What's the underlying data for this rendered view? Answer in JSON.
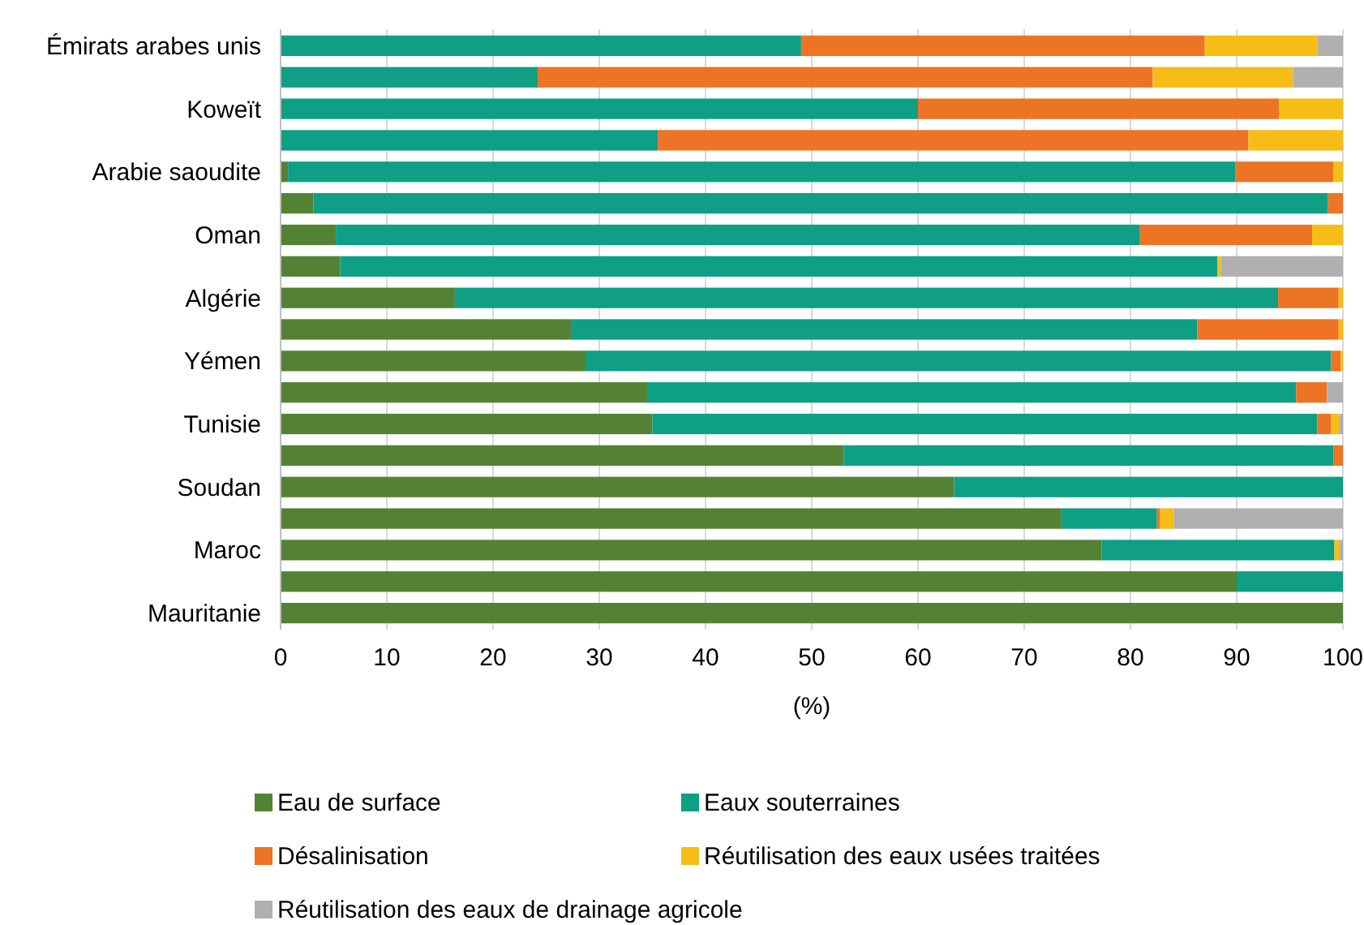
{
  "chart_data": {
    "type": "bar",
    "orientation": "horizontal",
    "stacked": true,
    "xlabel": "(%)",
    "categories": [
      "Émirats arabes unis",
      null,
      "Koweït",
      null,
      "Arabie saoudite",
      null,
      "Oman",
      null,
      "Algérie",
      null,
      "Yémen",
      null,
      "Tunisie",
      null,
      "Soudan",
      null,
      "Maroc",
      null,
      "Mauritanie"
    ],
    "series": [
      {
        "name": "Eau de surface",
        "color": "#548235",
        "values": [
          0,
          0,
          0,
          0,
          0.7,
          3.1,
          5.2,
          5.6,
          16.4,
          27.4,
          28.7,
          34.5,
          35,
          53,
          63.4,
          73.5,
          77.3,
          90,
          100
        ]
      },
      {
        "name": "Eaux souterraines",
        "color": "#0e9f84",
        "values": [
          49,
          24.2,
          60,
          35.5,
          89.2,
          95.5,
          75.7,
          82.6,
          77.5,
          58.9,
          70.2,
          61.1,
          62.6,
          46.1,
          36.6,
          9,
          21.9,
          10,
          0
        ]
      },
      {
        "name": "Désalinisation",
        "color": "#ec7424",
        "values": [
          38,
          57.9,
          34,
          55.6,
          9.2,
          1.4,
          16.2,
          0,
          5.7,
          13.3,
          0.9,
          2.9,
          1.3,
          0.9,
          0,
          0.3,
          0,
          0,
          0
        ]
      },
      {
        "name": "Réutilisation des eaux usées traitées",
        "color": "#f6bd16",
        "values": [
          10.6,
          13.2,
          6,
          8.9,
          0.9,
          0,
          2.9,
          0.3,
          0.4,
          0.4,
          0.2,
          0,
          0.8,
          0,
          0,
          1.3,
          0.5,
          0,
          0
        ]
      },
      {
        "name": "Réutilisation des eaux de drainage agricole",
        "color": "#b0b0b0",
        "values": [
          2.4,
          4.7,
          0,
          0,
          0,
          0,
          0,
          11.5,
          0,
          0,
          0,
          1.5,
          0.3,
          0,
          0,
          15.9,
          0.3,
          0,
          0
        ]
      }
    ],
    "xlim": [
      0,
      100
    ],
    "xticks": [
      0,
      10,
      20,
      30,
      40,
      50,
      60,
      70,
      80,
      90,
      100
    ],
    "grid": "x",
    "legend": "bottom"
  }
}
